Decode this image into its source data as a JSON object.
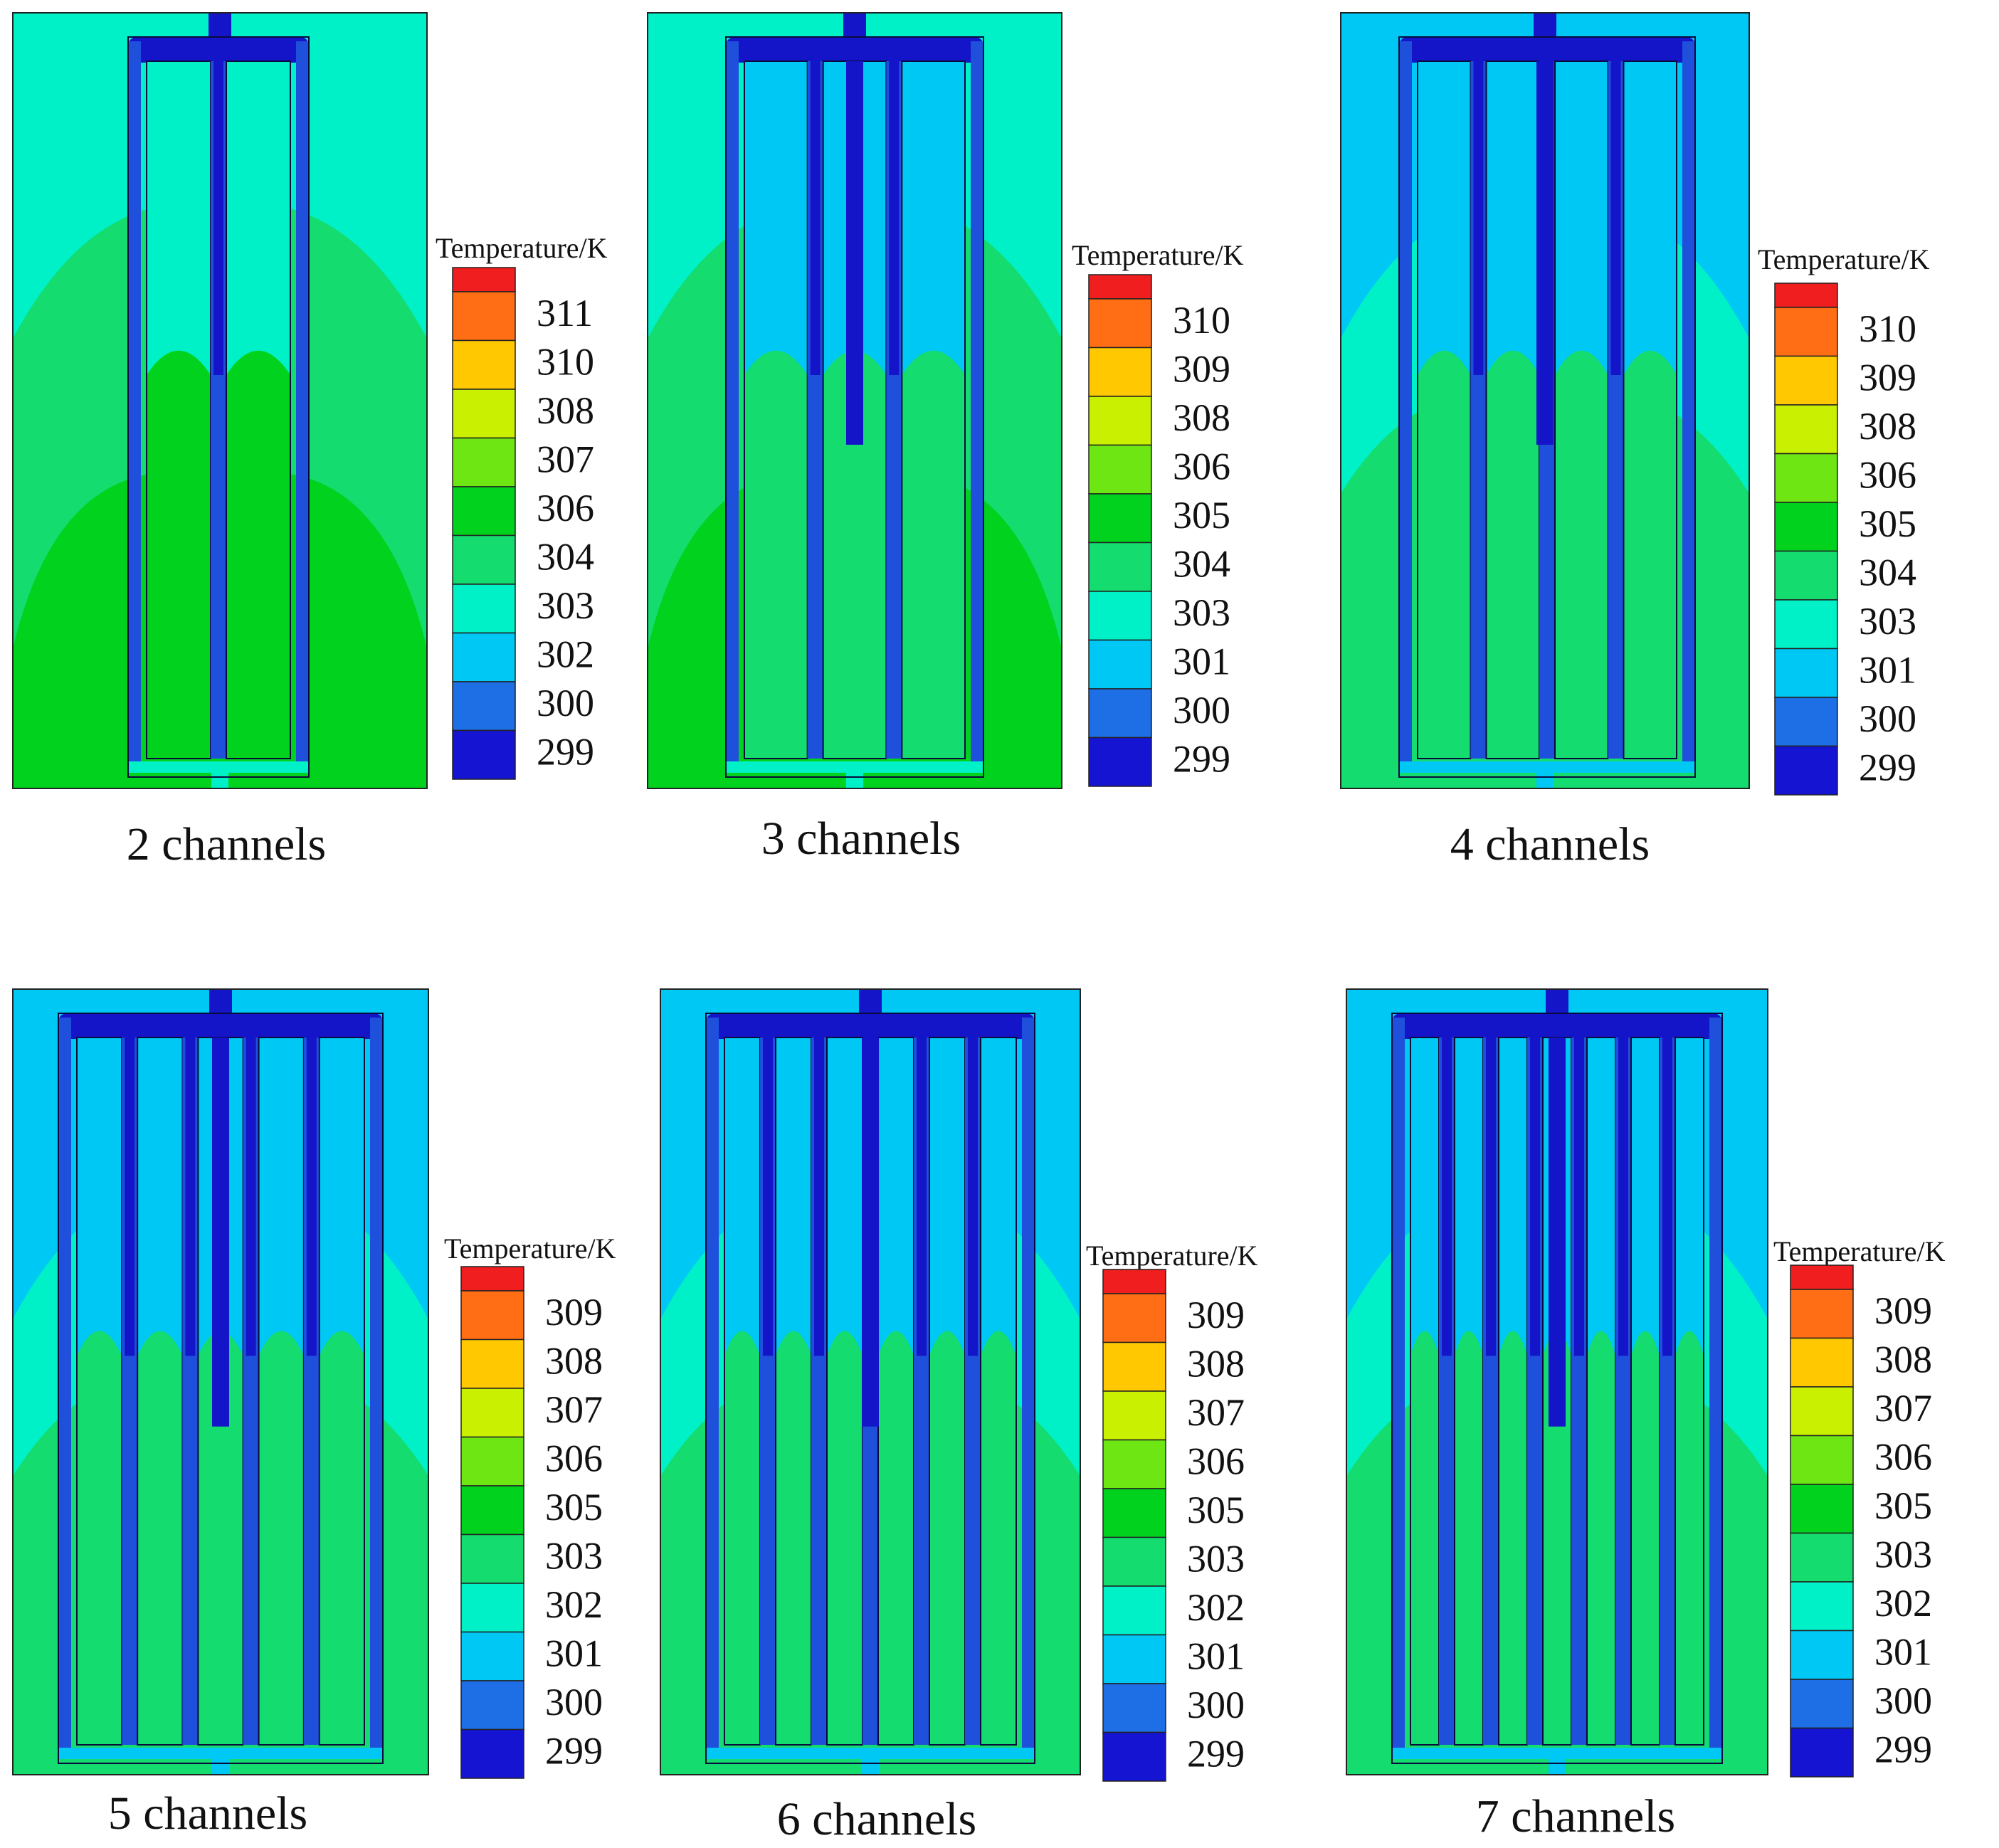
{
  "figure": {
    "legend_title": "Temperature/K",
    "colormap": [
      "#1414d2",
      "#1e6ee6",
      "#00c8f5",
      "#00f0c8",
      "#14dc6e",
      "#00d21e",
      "#6ee614",
      "#c8f000",
      "#ffc800",
      "#ff6e14",
      "#f01e1e"
    ],
    "colors": {
      "coolant_dark": "#1414c8",
      "coolant_mid": "#1e50dc",
      "outline": "#0a0a3c",
      "background": "#ffffff"
    },
    "panels": [
      {
        "caption": "2 channels",
        "channels": 2,
        "legend_values": [
          "311",
          "310",
          "308",
          "307",
          "306",
          "304",
          "303",
          "302",
          "300",
          "299"
        ],
        "zones": {
          "outer_top": "#00f0c8",
          "outer_mid": "#14dc6e",
          "outer_bottom": "#00d21e",
          "inner_top": "#00f0c8",
          "inner_bottom": "#00d21e"
        }
      },
      {
        "caption": "3 channels",
        "channels": 3,
        "legend_values": [
          "310",
          "309",
          "308",
          "306",
          "305",
          "304",
          "303",
          "301",
          "300",
          "299"
        ],
        "zones": {
          "outer_top": "#00f0c8",
          "outer_mid": "#14dc6e",
          "outer_bottom": "#00d21e",
          "inner_top": "#00c8f5",
          "inner_bottom": "#14dc6e"
        }
      },
      {
        "caption": "4 channels",
        "channels": 4,
        "legend_values": [
          "310",
          "309",
          "308",
          "306",
          "305",
          "304",
          "303",
          "301",
          "300",
          "299"
        ],
        "zones": {
          "outer_top": "#00c8f5",
          "outer_mid": "#00f0c8",
          "outer_bottom": "#14dc6e",
          "inner_top": "#00c8f5",
          "inner_bottom": "#14dc6e"
        }
      },
      {
        "caption": "5 channels",
        "channels": 5,
        "legend_values": [
          "309",
          "308",
          "307",
          "306",
          "305",
          "303",
          "302",
          "301",
          "300",
          "299"
        ],
        "zones": {
          "outer_top": "#00c8f5",
          "outer_mid": "#00f0c8",
          "outer_bottom": "#14dc6e",
          "inner_top": "#00c8f5",
          "inner_bottom": "#14dc6e"
        }
      },
      {
        "caption": "6 channels",
        "channels": 6,
        "legend_values": [
          "309",
          "308",
          "307",
          "306",
          "305",
          "303",
          "302",
          "301",
          "300",
          "299"
        ],
        "zones": {
          "outer_top": "#00c8f5",
          "outer_mid": "#00f0c8",
          "outer_bottom": "#14dc6e",
          "inner_top": "#00c8f5",
          "inner_bottom": "#14dc6e"
        }
      },
      {
        "caption": "7 channels",
        "channels": 7,
        "legend_values": [
          "309",
          "308",
          "307",
          "306",
          "305",
          "303",
          "302",
          "301",
          "300",
          "299"
        ],
        "zones": {
          "outer_top": "#00c8f5",
          "outer_mid": "#00f0c8",
          "outer_bottom": "#14dc6e",
          "inner_top": "#00c8f5",
          "inner_bottom": "#14dc6e"
        }
      }
    ]
  }
}
